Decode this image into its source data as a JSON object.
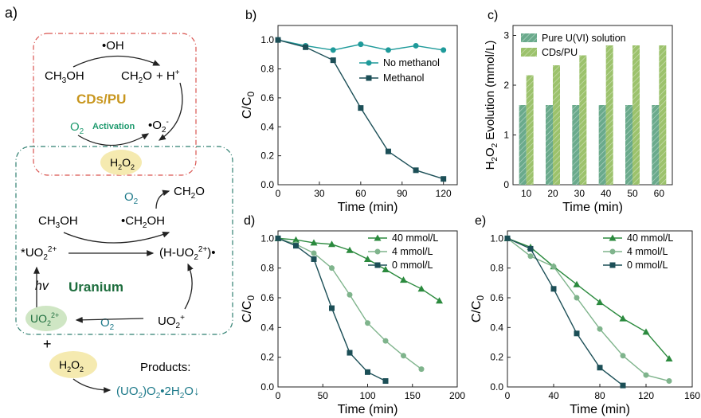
{
  "panel_a": {
    "label": "a)",
    "cds_pu": "CDs/PU",
    "uranium": "Uranium",
    "oh_radical": "•OH",
    "ch3oh_top": "CH",
    "ch2o_top": "CH",
    "h_plus": "+ H",
    "o2_activation": "O",
    "activation": "Activation",
    "superoxide": "•O",
    "h2o2_center": "H",
    "o2_mid": "O",
    "ch2o_mid": "CH",
    "ch3oh_mid": "CH",
    "ch2oh_radical": "•CH",
    "uo2_excited": "*UO",
    "h_uo2": "(H-UO",
    "hv": "hv",
    "uo2_bottom": "UO",
    "o2_bottom": "O",
    "uo2_plus": "UO",
    "plus_sign": "+",
    "h2o2_bottom": "H",
    "products_label": "Products:",
    "product_formula": "(UO"
  },
  "chart_data": [
    {
      "panel": "b)",
      "type": "line",
      "xlabel": "Time (min)",
      "ylabel": "C/C0",
      "xlim": [
        0,
        130
      ],
      "ylim": [
        0,
        1.1
      ],
      "xticks": [
        0,
        30,
        60,
        90,
        120
      ],
      "yticks": [
        0.0,
        0.2,
        0.4,
        0.6,
        0.8,
        1.0
      ],
      "legend_position": "right",
      "series": [
        {
          "name": "No methanol",
          "color": "#1e9a9a",
          "marker": "circle",
          "x": [
            0,
            20,
            40,
            60,
            80,
            100,
            120
          ],
          "y": [
            1.0,
            0.96,
            0.93,
            0.97,
            0.93,
            0.96,
            0.93
          ]
        },
        {
          "name": "Methanol",
          "color": "#1c4f57",
          "marker": "square",
          "x": [
            0,
            20,
            40,
            60,
            80,
            100,
            120
          ],
          "y": [
            1.0,
            0.95,
            0.86,
            0.53,
            0.23,
            0.1,
            0.04
          ]
        }
      ]
    },
    {
      "panel": "c)",
      "type": "bar",
      "xlabel": "Time (min)",
      "ylabel": "H2O2 Evolution (mmol/L)",
      "categories": [
        "10",
        "20",
        "30",
        "40",
        "50",
        "60"
      ],
      "ylim": [
        0,
        3.2
      ],
      "yticks": [
        0,
        1,
        2,
        3
      ],
      "legend_position": "top",
      "series": [
        {
          "name": "Pure U(VI) solution",
          "color": "#6aaa8c",
          "values": [
            1.6,
            1.6,
            1.6,
            1.6,
            1.6,
            1.6
          ]
        },
        {
          "name": "CDs/PU",
          "color": "#9cc26c",
          "values": [
            2.2,
            2.4,
            2.6,
            2.8,
            2.8,
            2.8
          ]
        }
      ]
    },
    {
      "panel": "d)",
      "type": "line",
      "xlabel": "Time (min)",
      "ylabel": "C/C0",
      "xlim": [
        0,
        200
      ],
      "ylim": [
        0,
        1.05
      ],
      "xticks": [
        0,
        50,
        100,
        150,
        200
      ],
      "yticks": [
        0.0,
        0.2,
        0.4,
        0.6,
        0.8,
        1.0
      ],
      "legend_position": "top-right",
      "series": [
        {
          "name": "40 mmol/L",
          "color": "#2b8a3e",
          "marker": "triangle",
          "x": [
            0,
            20,
            40,
            60,
            80,
            100,
            120,
            140,
            160,
            180
          ],
          "y": [
            1.0,
            0.99,
            0.97,
            0.96,
            0.92,
            0.86,
            0.79,
            0.72,
            0.66,
            0.58
          ]
        },
        {
          "name": "4  mmol/L",
          "color": "#7fb48c",
          "marker": "circle",
          "x": [
            0,
            20,
            40,
            60,
            80,
            100,
            120,
            140,
            160
          ],
          "y": [
            1.0,
            0.96,
            0.9,
            0.8,
            0.62,
            0.43,
            0.31,
            0.21,
            0.12
          ]
        },
        {
          "name": "0  mmol/L",
          "color": "#1c4f57",
          "marker": "square",
          "x": [
            0,
            20,
            40,
            60,
            80,
            100,
            120
          ],
          "y": [
            1.0,
            0.95,
            0.86,
            0.53,
            0.23,
            0.1,
            0.04
          ]
        }
      ]
    },
    {
      "panel": "e)",
      "type": "line",
      "xlabel": "Time (min)",
      "ylabel": "C/C0",
      "xlim": [
        0,
        160
      ],
      "ylim": [
        0,
        1.05
      ],
      "xticks": [
        0,
        40,
        80,
        120,
        160
      ],
      "yticks": [
        0.0,
        0.2,
        0.4,
        0.6,
        0.8,
        1.0
      ],
      "legend_position": "top-right",
      "series": [
        {
          "name": "40 mmol/L",
          "color": "#2b8a3e",
          "marker": "triangle",
          "x": [
            0,
            20,
            40,
            60,
            80,
            100,
            120,
            140
          ],
          "y": [
            1.0,
            0.94,
            0.81,
            0.69,
            0.57,
            0.46,
            0.37,
            0.19
          ]
        },
        {
          "name": "4  mmol/L",
          "color": "#7fb48c",
          "marker": "circle",
          "x": [
            0,
            20,
            40,
            60,
            80,
            100,
            120,
            140
          ],
          "y": [
            1.0,
            0.88,
            0.81,
            0.6,
            0.39,
            0.21,
            0.08,
            0.04
          ]
        },
        {
          "name": "0  mmol/L",
          "color": "#1c4f57",
          "marker": "square",
          "x": [
            0,
            20,
            40,
            60,
            80,
            100
          ],
          "y": [
            1.0,
            0.93,
            0.66,
            0.36,
            0.13,
            0.01
          ]
        }
      ]
    }
  ]
}
